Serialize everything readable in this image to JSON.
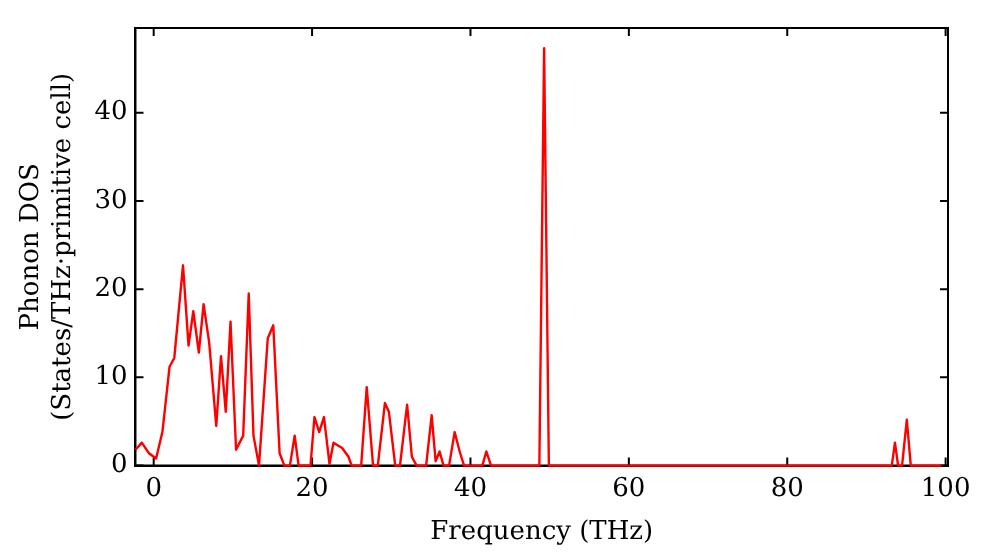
{
  "chart_data": {
    "type": "line",
    "xlabel": "Frequency (THz)",
    "ylabel": [
      "Phonon DOS",
      "(States/THz·primitive cell)"
    ],
    "xlim": [
      -2.3,
      100.3
    ],
    "ylim": [
      0,
      49.6
    ],
    "xticks": [
      0,
      20,
      40,
      60,
      80,
      100
    ],
    "yticks": [
      0,
      10,
      20,
      30,
      40
    ],
    "grid": false,
    "legend": false,
    "marker": "none",
    "line_style": "solid",
    "series": [
      {
        "color": "#ff0000",
        "x": [
          -2.3,
          -1.5,
          -0.6,
          0.3,
          1.1,
          2.0,
          2.6,
          3.7,
          4.4,
          5.0,
          5.7,
          6.3,
          7.0,
          7.9,
          8.5,
          9.1,
          9.7,
          10.4,
          11.3,
          12.0,
          12.6,
          13.3,
          14.4,
          15.1,
          15.9,
          16.5,
          17.2,
          17.8,
          18.3,
          19.8,
          20.3,
          20.9,
          21.5,
          22.2,
          22.7,
          23.8,
          24.6,
          25.0,
          26.2,
          26.9,
          27.7,
          28.3,
          29.2,
          29.7,
          30.5,
          31.1,
          32.0,
          32.6,
          33.2,
          34.4,
          35.1,
          35.6,
          36.1,
          36.6,
          37.3,
          38.0,
          38.7,
          39.2,
          41.5,
          42.0,
          42.6,
          48.7,
          49.3,
          49.9,
          93.2,
          93.6,
          94.0,
          94.5,
          95.1,
          95.6,
          99.5
        ],
        "values": [
          1.8,
          2.6,
          1.4,
          0.8,
          3.8,
          11.2,
          12.2,
          22.7,
          13.6,
          17.5,
          12.8,
          18.3,
          14,
          4.5,
          12.4,
          6.1,
          16.3,
          1.8,
          3.4,
          19.5,
          3.4,
          0,
          14.4,
          15.9,
          1.4,
          0,
          0,
          3.4,
          0,
          0,
          5.5,
          3.8,
          5.5,
          0.2,
          2.6,
          2,
          1,
          0,
          0,
          8.9,
          0,
          0,
          7.1,
          6.1,
          0,
          0,
          6.9,
          1,
          0,
          0,
          5.7,
          0.5,
          1.6,
          0,
          0,
          3.8,
          1.4,
          0,
          0,
          1.6,
          0,
          0,
          47.3,
          0,
          0,
          2.6,
          0,
          0,
          5.2,
          0,
          0
        ]
      }
    ]
  }
}
